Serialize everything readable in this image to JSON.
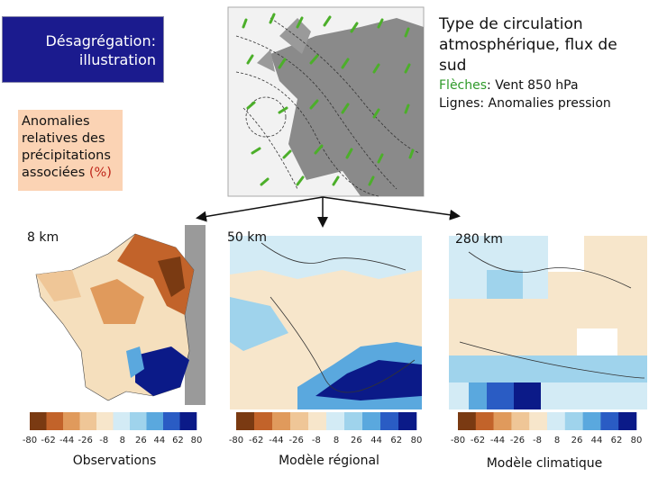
{
  "title": [
    "Désagrégation:",
    "illustration"
  ],
  "circulation": {
    "title": "Type de circulation atmosphérique, flux de sud",
    "arrows": {
      "key": "Flèches",
      "text": ": Vent 850 hPa"
    },
    "lines": "Lignes: Anomalies pression"
  },
  "anomaly_box": {
    "text": "Anomalies relatives des précipitations associées",
    "unit": "(%)"
  },
  "legend": {
    "ticks": [
      -80,
      -62,
      -44,
      -26,
      -8,
      8,
      26,
      44,
      62,
      80
    ],
    "colors": [
      "#7a3a12",
      "#c2632a",
      "#e09a5c",
      "#efc697",
      "#f7e6cb",
      "#d3ebf5",
      "#9fd3ec",
      "#5aa8de",
      "#2a5cc4",
      "#0b1a88"
    ]
  },
  "panels": [
    {
      "resolution": "8 km",
      "caption": "Observations"
    },
    {
      "resolution": "50 km",
      "caption": "Modèle régional"
    },
    {
      "resolution": "280 km",
      "caption": "Modèle climatique"
    }
  ]
}
